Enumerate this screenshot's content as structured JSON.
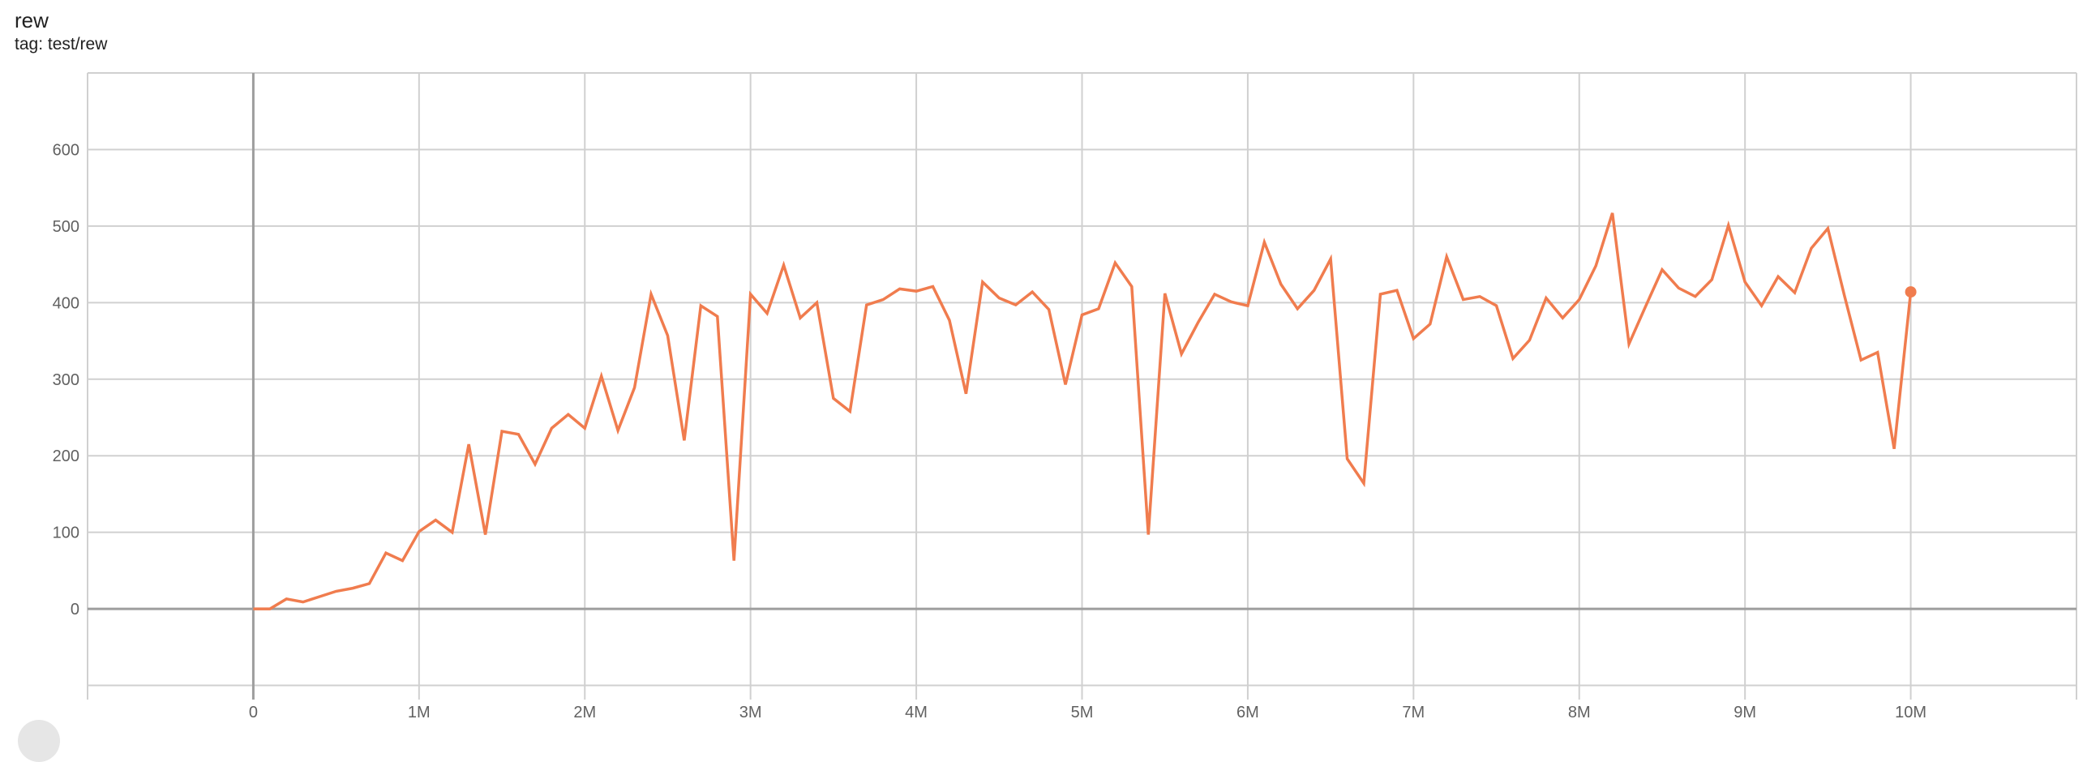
{
  "header": {
    "title": "rew",
    "subtitle": "tag: test/rew"
  },
  "colors": {
    "series": "#f07c4e",
    "grid": "#d0d0d0",
    "zero_axis": "#9e9e9e"
  },
  "chart_data": {
    "type": "line",
    "title": "rew",
    "subtitle": "tag: test/rew",
    "xlabel": "",
    "ylabel": "",
    "xlim": [
      -1000000,
      11000000
    ],
    "ylim": [
      -110,
      700
    ],
    "grid": true,
    "x_ticks": [
      0,
      1000000,
      2000000,
      3000000,
      4000000,
      5000000,
      6000000,
      7000000,
      8000000,
      9000000,
      10000000
    ],
    "x_tick_labels": [
      "0",
      "1M",
      "2M",
      "3M",
      "4M",
      "5M",
      "6M",
      "7M",
      "8M",
      "9M",
      "10M"
    ],
    "y_ticks": [
      0,
      100,
      200,
      300,
      400,
      500,
      600
    ],
    "y_tick_labels": [
      "0",
      "100",
      "200",
      "300",
      "400",
      "500",
      "600"
    ],
    "series": [
      {
        "x_step": 100000,
        "x_start": 0,
        "values": [
          0,
          0,
          13,
          9,
          16,
          23,
          27,
          33,
          73,
          63,
          101,
          116,
          100,
          215,
          97,
          232,
          228,
          189,
          236,
          254,
          236,
          304,
          233,
          289,
          411,
          357,
          220,
          396,
          382,
          63,
          411,
          386,
          449,
          380,
          400,
          275,
          258,
          397,
          404,
          418,
          415,
          421,
          377,
          281,
          427,
          406,
          397,
          414,
          391,
          293,
          384,
          392,
          452,
          421,
          97,
          412,
          333,
          374,
          411,
          401,
          396,
          479,
          424,
          392,
          416,
          457,
          196,
          164,
          411,
          416,
          353,
          372,
          460,
          404,
          408,
          396,
          327,
          351,
          406,
          380,
          404,
          448,
          517,
          346,
          395,
          443,
          419,
          408,
          430,
          501,
          427,
          396,
          434,
          413,
          471,
          497,
          409,
          325,
          335,
          209,
          414
        ]
      }
    ]
  }
}
